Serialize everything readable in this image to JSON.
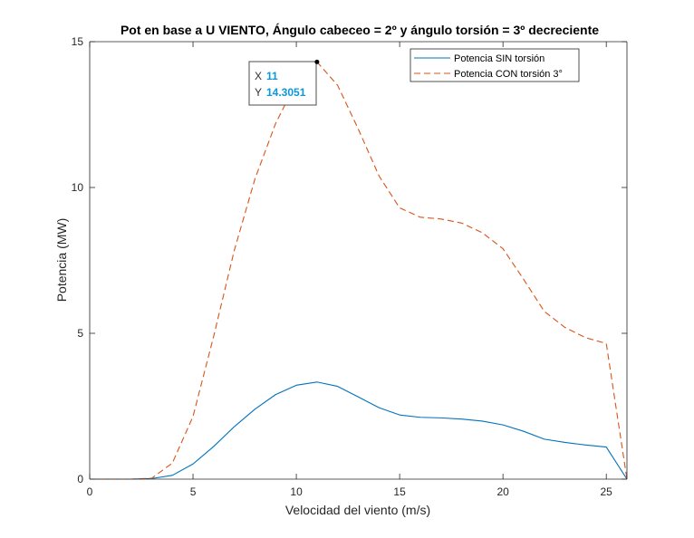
{
  "chart_data": {
    "type": "line",
    "title": "Pot en base a U VIENTO, Ángulo cabeceo = 2º y ángulo torsión = 3º decreciente",
    "xlabel": "Velocidad del viento (m/s)",
    "ylabel": "Potencia (MW)",
    "xlim": [
      0,
      26
    ],
    "ylim": [
      0,
      15
    ],
    "xticks": [
      0,
      5,
      10,
      15,
      20,
      25
    ],
    "yticks": [
      0,
      5,
      10,
      15
    ],
    "grid": false,
    "legend_position": "top-right",
    "x": [
      0,
      1,
      2,
      3,
      4,
      5,
      6,
      7,
      8,
      9,
      10,
      11,
      12,
      13,
      14,
      15,
      16,
      17,
      18,
      19,
      20,
      21,
      22,
      23,
      24,
      25,
      26
    ],
    "series": [
      {
        "name": "Potencia SIN torsión",
        "color": "#0072bd",
        "style": "solid",
        "values": [
          0,
          0,
          0,
          0.02,
          0.13,
          0.52,
          1.12,
          1.8,
          2.4,
          2.9,
          3.22,
          3.33,
          3.18,
          2.82,
          2.45,
          2.2,
          2.12,
          2.1,
          2.06,
          1.99,
          1.86,
          1.64,
          1.37,
          1.26,
          1.17,
          1.1,
          0
        ]
      },
      {
        "name": "Potencia CON torsión 3°",
        "color": "#d95319",
        "style": "dashed",
        "values": [
          0,
          0,
          0,
          0.03,
          0.55,
          2.15,
          4.9,
          7.85,
          10.3,
          12.2,
          13.6,
          14.3051,
          13.5,
          12.0,
          10.4,
          9.3,
          8.98,
          8.92,
          8.78,
          8.45,
          7.9,
          6.85,
          5.75,
          5.2,
          4.85,
          4.65,
          0
        ]
      }
    ],
    "datatip": {
      "x_label": "X",
      "x_value": "11",
      "y_label": "Y",
      "y_value": "14.3051",
      "x": 11,
      "y": 14.3051
    }
  }
}
